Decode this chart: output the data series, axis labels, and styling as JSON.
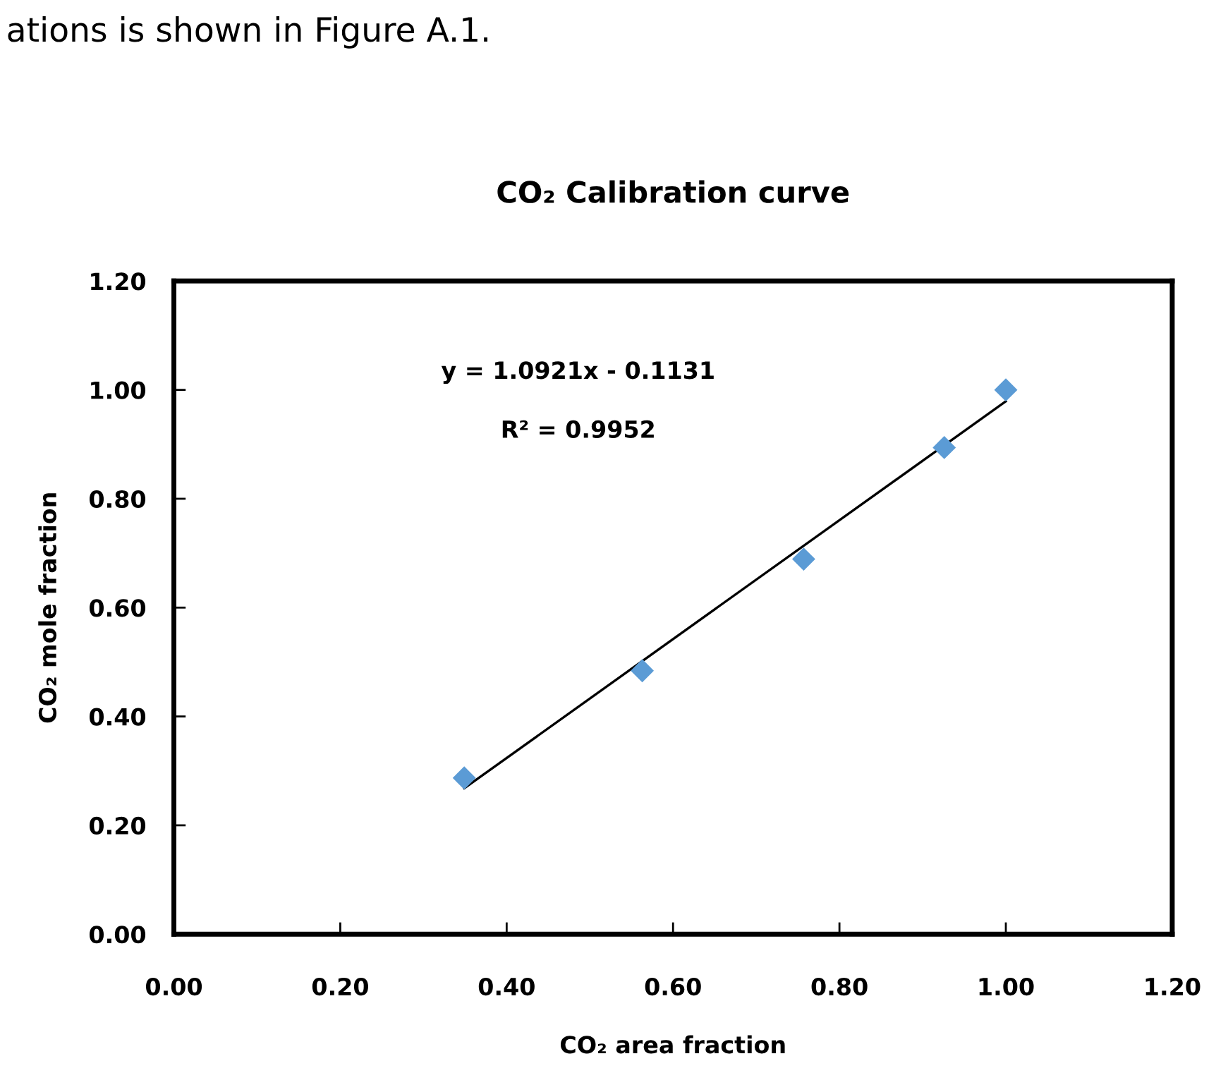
{
  "chart_data": {
    "type": "scatter",
    "title": "CO₂ Calibration curve",
    "xlabel": "CO₂ area fraction",
    "ylabel": "CO₂ mole fraction",
    "annotations": [
      "ations is shown in Figure A.1.",
      "y = 1.0921x - 0.1131",
      "R² = 0.9952"
    ],
    "series": [
      {
        "color": "#5b9bd5",
        "marker": "diamond",
        "x": [
          0.349,
          0.563,
          0.757,
          0.926,
          1.0
        ],
        "values": [
          0.287,
          0.484,
          0.689,
          0.894,
          1.0
        ]
      },
      {
        "type": "line",
        "color": "#000000",
        "marker": "none",
        "line_style": "solid",
        "x": [
          0.349,
          1.0
        ],
        "values": [
          0.268,
          0.979
        ]
      }
    ],
    "xlim": [
      0,
      1.2
    ],
    "xticks": [
      {
        "value": 0,
        "label": "0.00"
      },
      {
        "value": 0.2,
        "label": "0.20"
      },
      {
        "value": 0.4,
        "label": "0.40"
      },
      {
        "value": 0.6,
        "label": "0.60"
      },
      {
        "value": 0.8,
        "label": "0.80"
      },
      {
        "value": 1.0,
        "label": "1.00"
      },
      {
        "value": 1.2,
        "label": "1.20"
      }
    ],
    "ylim": [
      0,
      1.2
    ],
    "yticks": [
      {
        "value": 0,
        "label": "0.00"
      },
      {
        "value": 0.2,
        "label": "0.20"
      },
      {
        "value": 0.4,
        "label": "0.40"
      },
      {
        "value": 0.6,
        "label": "0.60"
      },
      {
        "value": 0.8,
        "label": "0.80"
      },
      {
        "value": 1.0,
        "label": "1.00"
      },
      {
        "value": 1.2,
        "label": "1.20"
      }
    ],
    "grid": false,
    "legend": false
  }
}
